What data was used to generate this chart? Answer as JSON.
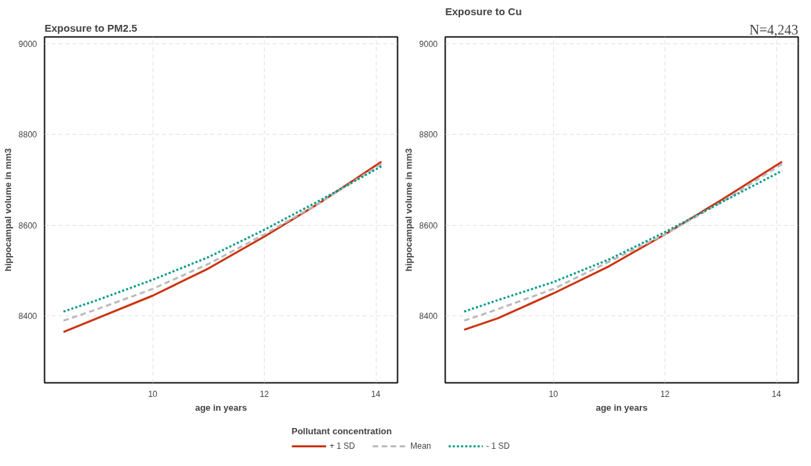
{
  "chart_data": [
    {
      "type": "line",
      "title": "Exposure to PM2.5",
      "xlabel": "age in years",
      "ylabel": "hippocampal volume in mm3",
      "x": [
        8.4,
        9,
        10,
        11,
        12,
        13,
        14.1
      ],
      "series": [
        {
          "name": "+ 1 SD",
          "color": "#cc3311",
          "line_style": "solid",
          "values": [
            8365,
            8395,
            8445,
            8505,
            8575,
            8650,
            8740
          ]
        },
        {
          "name": "Mean",
          "color": "#bbbbbb",
          "line_style": "dashed",
          "values": [
            8390,
            8415,
            8460,
            8515,
            8580,
            8650,
            8735
          ]
        },
        {
          "name": "- 1 SD",
          "color": "#009988",
          "line_style": "dotted",
          "values": [
            8410,
            8435,
            8480,
            8530,
            8590,
            8655,
            8730
          ]
        }
      ],
      "legend": "bottom",
      "legend_title": "Pollutant concentration",
      "xlim": [
        8.06,
        14.39
      ],
      "ylim": [
        8253,
        9015
      ],
      "xticks": [
        10,
        12,
        14
      ],
      "yticks": [
        8400,
        8600,
        8800,
        9000
      ],
      "grid": true
    },
    {
      "type": "line",
      "title": "Exposure to Cu",
      "xlabel": "age in years",
      "ylabel": "hippocampal volume in mm3",
      "annotations": [
        "N=4,243"
      ],
      "x": [
        8.4,
        9,
        10,
        11,
        12,
        13,
        14.1
      ],
      "series": [
        {
          "color": "#cc3311",
          "line_style": "solid",
          "values": [
            8370,
            8395,
            8450,
            8510,
            8580,
            8655,
            8740
          ]
        },
        {
          "color": "#bbbbbb",
          "line_style": "dashed",
          "values": [
            8390,
            8415,
            8460,
            8520,
            8580,
            8650,
            8735
          ]
        },
        {
          "color": "#009988",
          "line_style": "dotted",
          "values": [
            8410,
            8435,
            8475,
            8525,
            8585,
            8650,
            8720
          ]
        }
      ],
      "xlim": [
        8.06,
        14.39
      ],
      "ylim": [
        8253,
        9015
      ],
      "xticks": [
        10,
        12,
        14
      ],
      "yticks": [
        8400,
        8600,
        8800,
        9000
      ],
      "grid": true
    }
  ]
}
